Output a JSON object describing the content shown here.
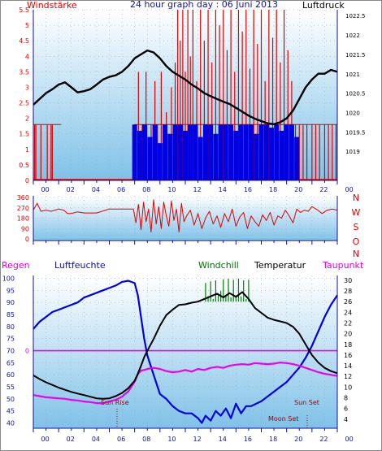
{
  "header": {
    "left": "Windstärke",
    "center": "24 hour graph day : 06 Juni 2013",
    "right": "Luftdruck"
  },
  "colors": {
    "red": "#e00000",
    "blue": "#0000e0",
    "black": "#000000",
    "magenta": "#ee00ee",
    "green": "#007000",
    "navy": "#1010a0"
  },
  "x_ticks": [
    "00",
    "02",
    "04",
    "06",
    "08",
    "10",
    "12",
    "14",
    "16",
    "18",
    "20",
    "22",
    "00"
  ],
  "chart_data": [
    {
      "type": "line",
      "name": "wind-pressure",
      "y_left_label": "Windstärke",
      "y_right_label": "Luftdruck",
      "ylim_left": [
        0,
        5.5
      ],
      "left_ticks": [
        "5.5",
        "5",
        "4.5",
        "4",
        "3.5",
        "3",
        "2.5",
        "2",
        "1.5",
        "1",
        "0.5",
        "0"
      ],
      "right_ticks": [
        "1022.5",
        "1022",
        "1021.5",
        "1021",
        "1020.5",
        "1020",
        "1019.5",
        "1019"
      ],
      "right_tick_values": [
        1022.5,
        1022,
        1021.5,
        1021,
        1020.5,
        1020,
        1019.5,
        1019
      ],
      "ylim_right": [
        1018.25,
        1022.65
      ],
      "pressure_x": [
        0,
        0.5,
        1,
        1.5,
        2,
        2.5,
        3,
        3.5,
        4,
        4.5,
        5,
        5.5,
        6,
        6.5,
        7,
        7.5,
        8,
        8.5,
        9,
        9.5,
        10,
        10.5,
        11,
        11.5,
        12,
        12.5,
        13,
        13.5,
        14,
        14.5,
        15,
        15.5,
        16,
        16.5,
        17,
        17.5,
        18,
        18.5,
        19,
        19.5,
        20,
        20.5,
        21,
        21.5,
        22,
        22.5,
        23,
        23.5,
        24
      ],
      "pressure_y": [
        1020.2,
        1020.35,
        1020.5,
        1020.6,
        1020.72,
        1020.78,
        1020.65,
        1020.52,
        1020.55,
        1020.6,
        1020.72,
        1020.85,
        1020.92,
        1020.96,
        1021.05,
        1021.2,
        1021.4,
        1021.5,
        1021.6,
        1021.55,
        1021.4,
        1021.2,
        1021.05,
        1020.95,
        1020.85,
        1020.72,
        1020.62,
        1020.5,
        1020.42,
        1020.35,
        1020.28,
        1020.22,
        1020.12,
        1020.02,
        1019.92,
        1019.84,
        1019.78,
        1019.72,
        1019.7,
        1019.75,
        1019.85,
        1020.05,
        1020.35,
        1020.65,
        1020.85,
        1021.0,
        1021.0,
        1021.1,
        1021.05
      ],
      "gust_x": [
        0.1,
        0.2,
        0.6,
        1.1,
        1.4,
        1.5,
        8.0,
        8.3,
        8.6,
        8.9,
        9.3,
        9.6,
        9.8,
        10.1,
        10.5,
        10.9,
        11.2,
        11.4,
        11.6,
        11.8,
        12.0,
        12.2,
        12.4,
        12.6,
        12.9,
        13.2,
        13.5,
        13.8,
        14.1,
        14.4,
        14.7,
        15.0,
        15.3,
        15.6,
        15.9,
        16.2,
        16.5,
        16.8,
        17.1,
        17.4,
        17.7,
        18.0,
        18.3,
        18.6,
        18.9,
        19.2,
        19.5,
        19.8,
        20.1,
        20.4,
        20.7,
        21.0,
        21.3,
        21.6,
        22.0,
        22.3,
        22.6,
        23.0,
        23.3,
        23.6,
        23.9
      ],
      "gust_y": [
        1.8,
        1.8,
        1.8,
        1.8,
        1.8,
        1.8,
        1.8,
        3.5,
        1.8,
        3.5,
        1.8,
        3.2,
        1.8,
        3.5,
        2.2,
        3.0,
        3.8,
        5.5,
        4.5,
        5.5,
        3.5,
        5.5,
        4.0,
        5.5,
        3.2,
        5.5,
        4.5,
        5.5,
        3.8,
        5.5,
        5.0,
        5.5,
        4.2,
        5.5,
        3.5,
        5.5,
        4.8,
        5.5,
        3.6,
        5.5,
        4.4,
        5.5,
        3.2,
        5.5,
        4.6,
        5.5,
        3.8,
        5.5,
        4.2,
        3.2,
        1.8,
        1.8,
        1.8,
        1.8,
        1.8,
        1.8,
        1.8,
        1.8,
        1.8,
        1.8,
        1.8
      ],
      "wind_x": [
        8.0,
        8.4,
        8.8,
        9.2,
        9.6,
        10.0,
        10.4,
        10.8,
        11.2,
        11.6,
        12.0,
        12.4,
        12.8,
        13.2,
        13.6,
        14.0,
        14.4,
        14.8,
        15.2,
        15.6,
        16.0,
        16.4,
        16.8,
        17.2,
        17.6,
        18.0,
        18.4,
        18.8,
        19.2,
        19.6,
        20.0,
        20.4,
        20.8
      ],
      "wind_y": [
        1.8,
        1.6,
        1.8,
        1.4,
        1.8,
        1.2,
        1.8,
        1.5,
        1.8,
        1.8,
        1.6,
        1.8,
        1.8,
        1.4,
        1.8,
        1.8,
        1.5,
        1.8,
        1.8,
        1.8,
        1.6,
        1.8,
        1.8,
        1.8,
        1.5,
        1.8,
        1.8,
        1.7,
        1.8,
        1.6,
        1.8,
        1.8,
        1.4
      ]
    },
    {
      "type": "line",
      "name": "wind-direction",
      "ylim": [
        0,
        360
      ],
      "left_ticks": [
        "360",
        "270",
        "180",
        "90",
        "0"
      ],
      "right_labels": [
        "N",
        "W",
        "S",
        "O",
        "N"
      ],
      "x": [
        0,
        0.3,
        0.6,
        1.0,
        1.4,
        2.0,
        2.4,
        2.7,
        3.0,
        3.5,
        4.0,
        5.0,
        6.0,
        7.0,
        7.9,
        8.1,
        8.3,
        8.5,
        8.7,
        8.9,
        9.1,
        9.3,
        9.5,
        9.7,
        9.9,
        10.1,
        10.3,
        10.5,
        10.7,
        10.9,
        11.1,
        11.3,
        11.5,
        11.7,
        11.9,
        12.1,
        12.4,
        12.7,
        13.0,
        13.3,
        13.6,
        13.9,
        14.2,
        14.5,
        14.8,
        15.1,
        15.4,
        15.7,
        16.0,
        16.3,
        16.6,
        16.9,
        17.2,
        17.5,
        17.8,
        18.1,
        18.4,
        18.7,
        19.0,
        19.3,
        19.6,
        19.9,
        20.2,
        20.5,
        20.8,
        21.1,
        21.4,
        21.7,
        22.0,
        22.4,
        22.8,
        23.2,
        23.6,
        24.0
      ],
      "y": [
        250,
        310,
        240,
        250,
        240,
        260,
        250,
        220,
        220,
        235,
        225,
        225,
        260,
        260,
        260,
        140,
        300,
        80,
        320,
        150,
        260,
        60,
        340,
        130,
        280,
        90,
        320,
        200,
        110,
        330,
        160,
        260,
        60,
        310,
        150,
        200,
        250,
        120,
        220,
        90,
        180,
        240,
        130,
        200,
        100,
        220,
        150,
        260,
        110,
        190,
        230,
        90,
        200,
        150,
        110,
        210,
        160,
        230,
        120,
        200,
        180,
        250,
        200,
        140,
        260,
        230,
        250,
        240,
        280,
        255,
        220,
        250,
        260,
        250
      ]
    },
    {
      "type": "line",
      "name": "humidity-temperature",
      "left1_label": "Regen",
      "left2_label": "Luftfeuchte",
      "series_labels": [
        "Windchill",
        "Temperatur",
        "Taupunkt"
      ],
      "left1_zero": "0",
      "left2_ticks": [
        "100",
        "95",
        "90",
        "85",
        "80",
        "75",
        "70",
        "65",
        "60",
        "55",
        "50",
        "45",
        "40"
      ],
      "right_ticks": [
        "30",
        "28",
        "26",
        "24",
        "22",
        "20",
        "18",
        "16",
        "14",
        "12",
        "10",
        "8",
        "6",
        "4"
      ],
      "ylim_humidity": [
        38.5,
        100.5
      ],
      "ylim_temp": [
        2.6,
        30.6
      ],
      "rain_value": 0,
      "humidity_x": [
        0,
        0.5,
        1,
        1.5,
        2,
        2.5,
        3,
        3.5,
        4,
        4.5,
        5,
        5.5,
        6,
        6.5,
        7,
        7.5,
        8,
        8.25,
        8.5,
        8.75,
        9,
        9.5,
        10,
        10.5,
        11,
        11.5,
        12,
        12.5,
        13,
        13.3,
        13.6,
        14,
        14.4,
        14.8,
        15.2,
        15.6,
        16,
        16.4,
        16.8,
        17.2,
        17.6,
        18,
        18.5,
        19,
        19.5,
        20,
        20.5,
        21,
        21.5,
        22,
        22.5,
        23,
        23.5,
        24
      ],
      "humidity_y": [
        79,
        82,
        84,
        86,
        87,
        88,
        89,
        90,
        92,
        93,
        94,
        95,
        96,
        97,
        98.5,
        99,
        98,
        93,
        84,
        75,
        68,
        60,
        52,
        50,
        47,
        45,
        44,
        44,
        42,
        40,
        43,
        41,
        45,
        43,
        46,
        42,
        48,
        44,
        47,
        47,
        48,
        49,
        51,
        53,
        55,
        57,
        60,
        63,
        67,
        72,
        78,
        84,
        89,
        93
      ],
      "temp_x": [
        0,
        0.5,
        1,
        1.5,
        2,
        2.5,
        3,
        3.5,
        4,
        4.5,
        5,
        5.5,
        6,
        6.5,
        7,
        7.5,
        8,
        8.25,
        8.5,
        8.75,
        9,
        9.5,
        10,
        10.5,
        11,
        11.5,
        12,
        12.5,
        13,
        13.5,
        14,
        14.5,
        15,
        15.5,
        16,
        16.5,
        17,
        17.5,
        18,
        18.5,
        19,
        19.5,
        20,
        20.5,
        21,
        21.5,
        22,
        22.5,
        23,
        23.5,
        24
      ],
      "temp_y": [
        12.2,
        11.5,
        10.9,
        10.4,
        9.9,
        9.5,
        9.1,
        8.8,
        8.5,
        8.2,
        7.9,
        7.8,
        7.9,
        8.3,
        8.9,
        9.8,
        11.2,
        12.5,
        14.0,
        15.6,
        16.8,
        19.0,
        21.5,
        23.5,
        24.5,
        25.4,
        25.5,
        25.8,
        26.0,
        26.5,
        27.0,
        27.5,
        26.8,
        27.6,
        26.9,
        27.8,
        26.5,
        24.8,
        23.9,
        23.0,
        22.6,
        22.3,
        22.0,
        21.3,
        20.0,
        18.0,
        16.0,
        14.6,
        13.6,
        13.0,
        12.6
      ],
      "dew_x": [
        0,
        0.5,
        1,
        1.5,
        2,
        2.5,
        3,
        3.5,
        4,
        4.5,
        5,
        5.5,
        6,
        6.5,
        7,
        7.5,
        8,
        8.25,
        8.5,
        8.75,
        9,
        9.5,
        10,
        10.5,
        11,
        11.5,
        12,
        12.5,
        13,
        13.5,
        14,
        14.5,
        15,
        15.5,
        16,
        16.5,
        17,
        17.5,
        18,
        18.5,
        19,
        19.5,
        20,
        20.5,
        21,
        21.5,
        22,
        22.5,
        23,
        23.5,
        24
      ],
      "dew_y": [
        8.5,
        8.3,
        8.1,
        8.0,
        7.9,
        7.8,
        7.6,
        7.5,
        7.3,
        7.2,
        7.0,
        7.0,
        7.3,
        7.6,
        8.2,
        9.2,
        11.0,
        12.4,
        13.1,
        13.2,
        13.4,
        13.6,
        13.4,
        13.0,
        12.8,
        12.9,
        13.2,
        12.9,
        13.4,
        13.2,
        13.6,
        13.8,
        13.6,
        14.0,
        14.2,
        14.3,
        14.2,
        14.5,
        14.4,
        14.3,
        14.4,
        14.6,
        14.5,
        14.3,
        14.0,
        13.6,
        13.2,
        12.8,
        12.5,
        12.3,
        12.1
      ],
      "windchill_x": [
        13.6,
        13.8,
        14.0,
        14.2,
        14.4,
        14.6,
        14.8,
        15.0,
        15.2,
        15.4,
        15.6,
        15.8,
        16.0,
        16.2,
        16.4,
        16.6,
        16.8,
        17.0
      ],
      "windchill_y": [
        29.5,
        27.0,
        29.8,
        26.5,
        30.0,
        27.5,
        28.0,
        30.2,
        27.0,
        30.3,
        26.8,
        30.1,
        27.2,
        30.3,
        27.0,
        30.0,
        26.5,
        30.1
      ],
      "annotations": [
        "Sun Rise",
        "Sun Set",
        "Moon Set"
      ]
    }
  ]
}
